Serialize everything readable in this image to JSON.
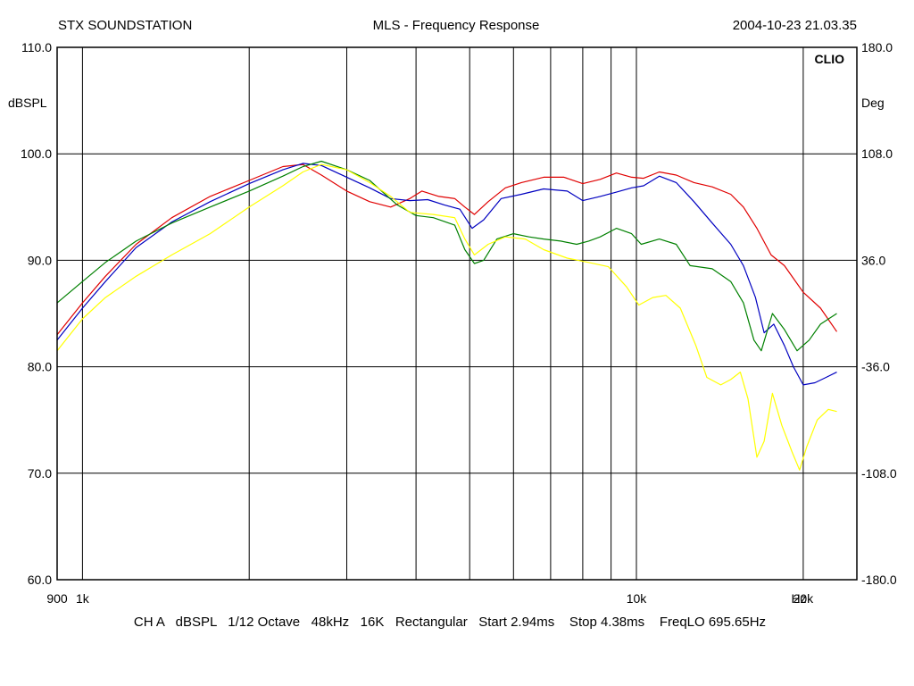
{
  "header": {
    "left": "STX SOUNDSTATION",
    "center": "MLS - Frequency Response",
    "right": "2004-10-23 21.03.35"
  },
  "footer": {
    "text": "CH A   dBSPL   1/12 Octave   48kHz   16K   Rectangular   Start 2.94ms    Stop 4.38ms    FreqLO 695.65Hz"
  },
  "brand": "CLIO",
  "colors": {
    "background": "#ffffff",
    "grid": "#000000",
    "red": "#e00000",
    "blue": "#0000c0",
    "green": "#008000",
    "yellow": "#ffff00"
  },
  "chart_data": {
    "type": "line",
    "title": "MLS - Frequency Response",
    "xscale": "log",
    "xlim": [
      900,
      25000
    ],
    "ylim": [
      60,
      110
    ],
    "y2lim": [
      -180,
      180
    ],
    "ylabel": "dBSPL",
    "y2label": "Deg",
    "x_ticks": [
      {
        "value": 900,
        "label": "900"
      },
      {
        "value": 1000,
        "label": "1k"
      },
      {
        "value": 10000,
        "label": "10k"
      },
      {
        "value": 20000,
        "label": "20k"
      }
    ],
    "x_unit_label": "Hz",
    "y_ticks": [
      {
        "value": 110,
        "label": "110.0"
      },
      {
        "value": 100,
        "label": "100.0"
      },
      {
        "value": 90,
        "label": "90.0"
      },
      {
        "value": 80,
        "label": "80.0"
      },
      {
        "value": 70,
        "label": "70.0"
      },
      {
        "value": 60,
        "label": "60.0"
      }
    ],
    "y2_ticks": [
      {
        "value": 180,
        "label": "180.0"
      },
      {
        "value": 108,
        "label": "108.0"
      },
      {
        "value": 36,
        "label": "36.0"
      },
      {
        "value": -36,
        "label": "-36.0"
      },
      {
        "value": -108,
        "label": "-108.0"
      },
      {
        "value": -180,
        "label": "-180.0"
      }
    ],
    "x_gridlines": [
      1000,
      2000,
      3000,
      4000,
      5000,
      6000,
      7000,
      8000,
      9000,
      10000,
      20000
    ],
    "grid": true,
    "series": [
      {
        "color": "#e00000",
        "points": [
          [
            900,
            83.0
          ],
          [
            1000,
            86.0
          ],
          [
            1100,
            88.5
          ],
          [
            1250,
            91.5
          ],
          [
            1450,
            94.0
          ],
          [
            1700,
            96.0
          ],
          [
            2000,
            97.5
          ],
          [
            2300,
            98.8
          ],
          [
            2500,
            99.0
          ],
          [
            2700,
            98.0
          ],
          [
            3000,
            96.5
          ],
          [
            3300,
            95.5
          ],
          [
            3600,
            95.0
          ],
          [
            3900,
            95.8
          ],
          [
            4100,
            96.5
          ],
          [
            4400,
            96.0
          ],
          [
            4700,
            95.8
          ],
          [
            4900,
            95.0
          ],
          [
            5100,
            94.3
          ],
          [
            5400,
            95.5
          ],
          [
            5800,
            96.8
          ],
          [
            6200,
            97.3
          ],
          [
            6800,
            97.8
          ],
          [
            7400,
            97.8
          ],
          [
            8000,
            97.2
          ],
          [
            8600,
            97.6
          ],
          [
            9200,
            98.2
          ],
          [
            9800,
            97.8
          ],
          [
            10300,
            97.7
          ],
          [
            11000,
            98.3
          ],
          [
            11800,
            98.0
          ],
          [
            12700,
            97.3
          ],
          [
            13700,
            96.9
          ],
          [
            14800,
            96.2
          ],
          [
            15600,
            95.0
          ],
          [
            16500,
            93.0
          ],
          [
            17500,
            90.5
          ],
          [
            18500,
            89.5
          ],
          [
            20000,
            87.0
          ],
          [
            21500,
            85.5
          ],
          [
            23000,
            83.3
          ]
        ]
      },
      {
        "color": "#0000c0",
        "points": [
          [
            900,
            82.5
          ],
          [
            1000,
            85.5
          ],
          [
            1100,
            88.0
          ],
          [
            1250,
            91.2
          ],
          [
            1450,
            93.6
          ],
          [
            1700,
            95.5
          ],
          [
            2000,
            97.2
          ],
          [
            2300,
            98.5
          ],
          [
            2500,
            99.1
          ],
          [
            2700,
            98.9
          ],
          [
            3000,
            97.8
          ],
          [
            3300,
            96.8
          ],
          [
            3600,
            95.8
          ],
          [
            3900,
            95.6
          ],
          [
            4200,
            95.7
          ],
          [
            4500,
            95.2
          ],
          [
            4800,
            94.8
          ],
          [
            5050,
            93.0
          ],
          [
            5300,
            93.8
          ],
          [
            5700,
            95.8
          ],
          [
            6200,
            96.2
          ],
          [
            6800,
            96.7
          ],
          [
            7500,
            96.5
          ],
          [
            8000,
            95.6
          ],
          [
            8600,
            96.0
          ],
          [
            9200,
            96.4
          ],
          [
            9800,
            96.8
          ],
          [
            10300,
            97.0
          ],
          [
            11000,
            97.9
          ],
          [
            11800,
            97.3
          ],
          [
            12700,
            95.5
          ],
          [
            13700,
            93.5
          ],
          [
            14800,
            91.5
          ],
          [
            15600,
            89.5
          ],
          [
            16400,
            86.5
          ],
          [
            17000,
            83.2
          ],
          [
            17700,
            84.0
          ],
          [
            18500,
            82.0
          ],
          [
            19200,
            80.0
          ],
          [
            20000,
            78.3
          ],
          [
            21000,
            78.5
          ],
          [
            22000,
            79.0
          ],
          [
            23000,
            79.5
          ]
        ]
      },
      {
        "color": "#008000",
        "points": [
          [
            900,
            86.0
          ],
          [
            1000,
            88.0
          ],
          [
            1100,
            89.8
          ],
          [
            1250,
            91.8
          ],
          [
            1450,
            93.5
          ],
          [
            1700,
            95.0
          ],
          [
            2000,
            96.5
          ],
          [
            2300,
            97.9
          ],
          [
            2500,
            98.8
          ],
          [
            2700,
            99.3
          ],
          [
            3000,
            98.5
          ],
          [
            3300,
            97.5
          ],
          [
            3700,
            95.2
          ],
          [
            4000,
            94.2
          ],
          [
            4300,
            94.0
          ],
          [
            4700,
            93.3
          ],
          [
            4900,
            91.0
          ],
          [
            5100,
            89.7
          ],
          [
            5300,
            90.0
          ],
          [
            5600,
            92.0
          ],
          [
            6000,
            92.5
          ],
          [
            6400,
            92.2
          ],
          [
            6800,
            92.0
          ],
          [
            7300,
            91.8
          ],
          [
            7800,
            91.5
          ],
          [
            8200,
            91.8
          ],
          [
            8600,
            92.2
          ],
          [
            9200,
            93.0
          ],
          [
            9800,
            92.5
          ],
          [
            10200,
            91.5
          ],
          [
            11000,
            92.0
          ],
          [
            11800,
            91.5
          ],
          [
            12500,
            89.5
          ],
          [
            13700,
            89.2
          ],
          [
            14800,
            88.0
          ],
          [
            15600,
            86.0
          ],
          [
            16300,
            82.5
          ],
          [
            16800,
            81.5
          ],
          [
            17600,
            85.0
          ],
          [
            18500,
            83.5
          ],
          [
            19500,
            81.5
          ],
          [
            20500,
            82.5
          ],
          [
            21500,
            84.0
          ],
          [
            23000,
            85.0
          ]
        ]
      },
      {
        "color": "#ffff00",
        "points": [
          [
            900,
            81.5
          ],
          [
            1000,
            84.5
          ],
          [
            1100,
            86.5
          ],
          [
            1250,
            88.5
          ],
          [
            1450,
            90.5
          ],
          [
            1700,
            92.5
          ],
          [
            2000,
            95.0
          ],
          [
            2300,
            97.0
          ],
          [
            2500,
            98.3
          ],
          [
            2700,
            99.0
          ],
          [
            3000,
            98.5
          ],
          [
            3300,
            97.3
          ],
          [
            3600,
            96.0
          ],
          [
            3900,
            94.5
          ],
          [
            4300,
            94.3
          ],
          [
            4700,
            94.0
          ],
          [
            4900,
            92.0
          ],
          [
            5100,
            90.5
          ],
          [
            5400,
            91.5
          ],
          [
            5800,
            92.2
          ],
          [
            6300,
            92.0
          ],
          [
            6800,
            91.0
          ],
          [
            7500,
            90.2
          ],
          [
            8200,
            89.8
          ],
          [
            8900,
            89.4
          ],
          [
            9600,
            87.5
          ],
          [
            10100,
            85.8
          ],
          [
            10700,
            86.5
          ],
          [
            11300,
            86.7
          ],
          [
            12000,
            85.5
          ],
          [
            12800,
            82.0
          ],
          [
            13400,
            79.0
          ],
          [
            14200,
            78.3
          ],
          [
            14800,
            78.8
          ],
          [
            15400,
            79.5
          ],
          [
            15900,
            77.0
          ],
          [
            16500,
            71.5
          ],
          [
            17000,
            73.0
          ],
          [
            17600,
            77.5
          ],
          [
            18300,
            74.5
          ],
          [
            19100,
            72.0
          ],
          [
            19700,
            70.3
          ],
          [
            20300,
            72.5
          ],
          [
            21200,
            75.0
          ],
          [
            22200,
            76.0
          ],
          [
            23000,
            75.8
          ]
        ]
      }
    ]
  }
}
